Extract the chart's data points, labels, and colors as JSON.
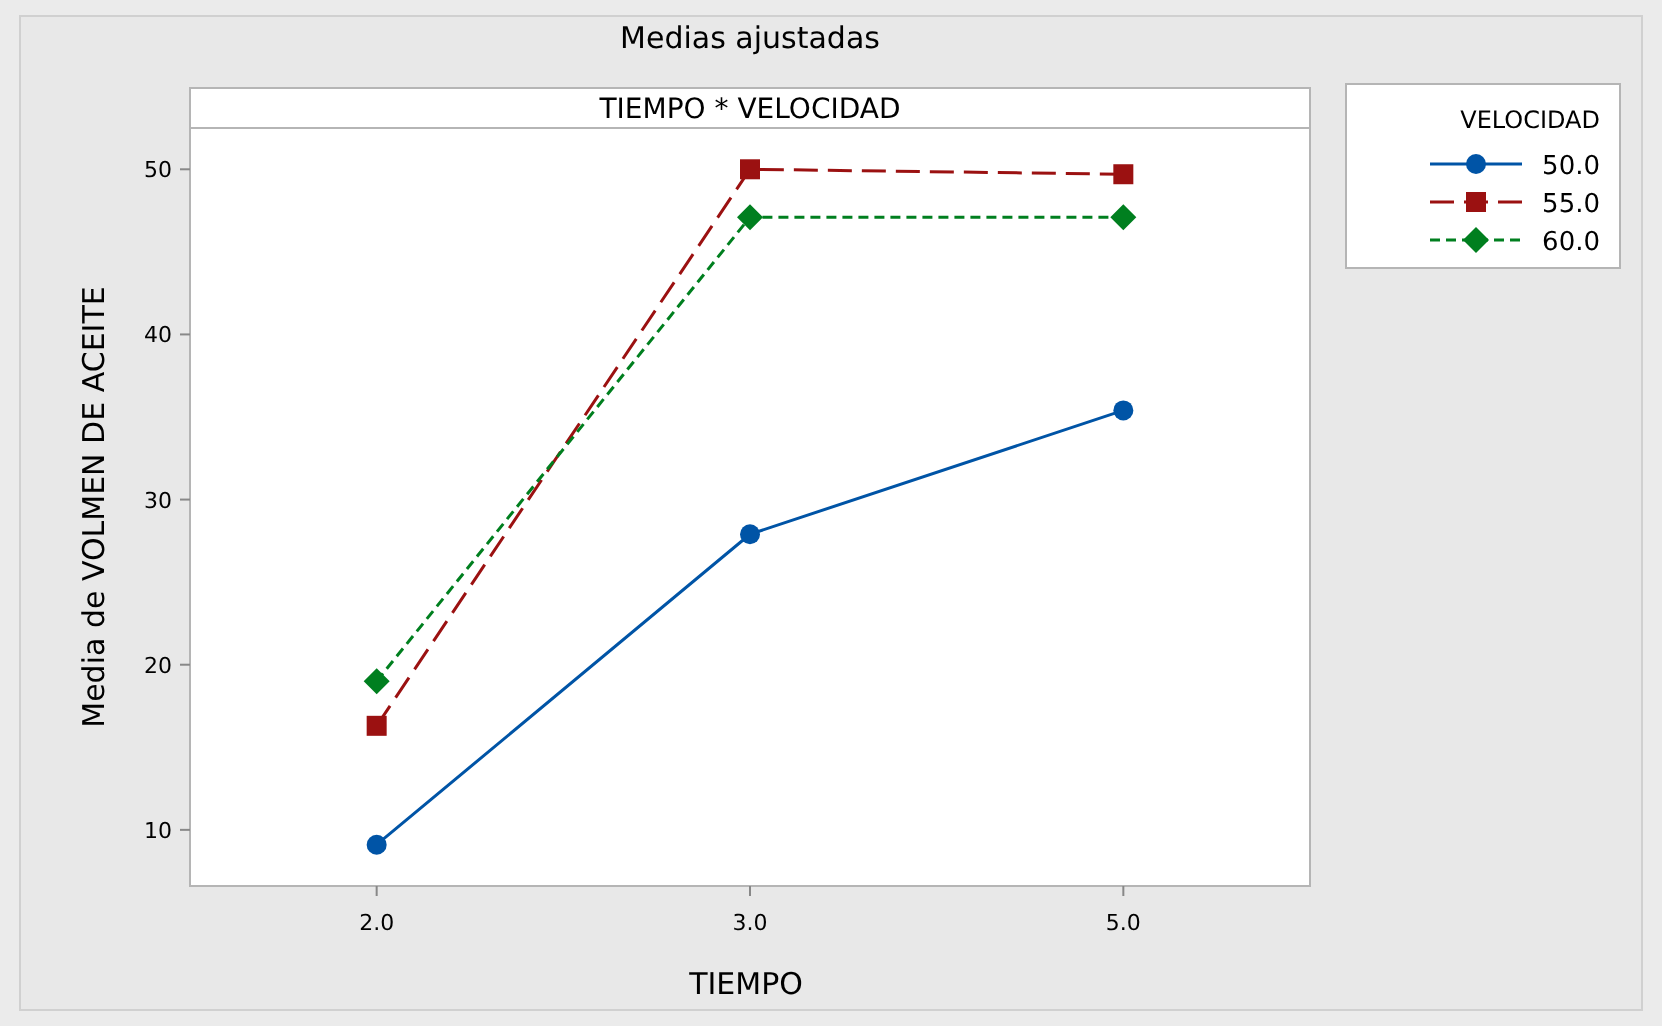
{
  "chart_data": {
    "type": "line",
    "title": "Medias ajustadas",
    "subtitle": "TIEMPO * VELOCIDAD",
    "xlabel": "TIEMPO",
    "ylabel": "Media de VOLMEN DE ACEITE",
    "legend_title": "VELOCIDAD",
    "legend": "right",
    "grid": false,
    "categories": [
      "2.0",
      "3.0",
      "5.0"
    ],
    "ylim": [
      6.6,
      52.5
    ],
    "yticks": [
      10,
      20,
      30,
      40,
      50
    ],
    "series": [
      {
        "name": "50.0",
        "color": "#0054a6",
        "values": [
          9.1,
          27.9,
          35.4
        ],
        "marker": "circle",
        "line_style": "solid"
      },
      {
        "name": "55.0",
        "color": "#9b1111",
        "values": [
          16.3,
          50.0,
          49.7
        ],
        "marker": "square",
        "line_style": "longdash"
      },
      {
        "name": "60.0",
        "color": "#007f1f",
        "values": [
          19.0,
          47.1,
          47.1
        ],
        "marker": "diamond",
        "line_style": "dashed"
      }
    ]
  }
}
